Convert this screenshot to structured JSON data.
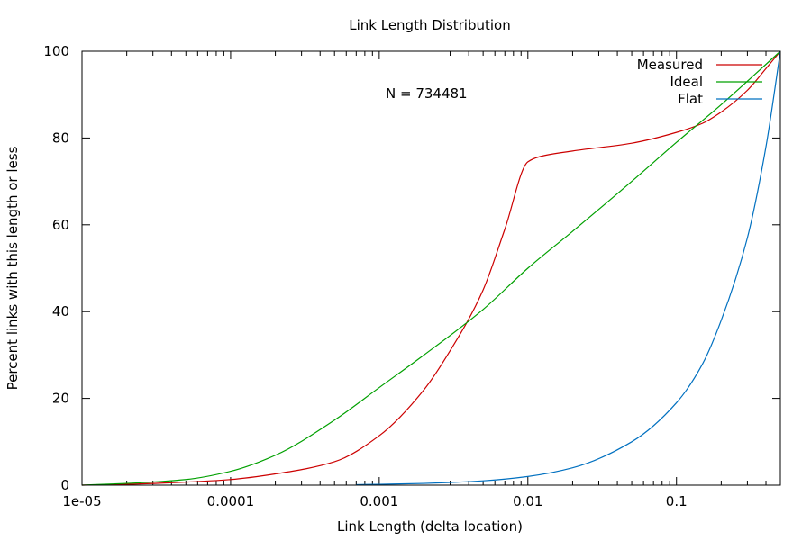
{
  "chart_data": {
    "type": "line",
    "title": "Link Length Distribution",
    "xlabel": "Link Length (delta location)",
    "ylabel": "Percent links with this length or less",
    "x_scale": "log",
    "xlim": [
      1e-05,
      0.5
    ],
    "ylim": [
      0,
      100
    ],
    "x_ticks": [
      1e-05,
      0.0001,
      0.001,
      0.01,
      0.1
    ],
    "x_tick_labels": [
      "1e-05",
      "0.0001",
      "0.001",
      "0.01",
      "0.1"
    ],
    "y_ticks": [
      0,
      20,
      40,
      60,
      80,
      100
    ],
    "y_tick_labels": [
      "0",
      "20",
      "40",
      "60",
      "80",
      "100"
    ],
    "grid": false,
    "legend_position": "top-right",
    "annotation": "N = 734481",
    "series": [
      {
        "name": "Measured",
        "color": "#cc0000",
        "x": [
          1e-05,
          2e-05,
          5e-05,
          0.0001,
          0.0002,
          0.0005,
          0.001,
          0.002,
          0.003,
          0.005,
          0.007,
          0.01,
          0.012,
          0.02,
          0.05,
          0.1,
          0.15,
          0.2,
          0.3,
          0.4,
          0.5
        ],
        "y": [
          0,
          0.2,
          0.7,
          1.3,
          2.6,
          5.4,
          11.4,
          22,
          31,
          45,
          59,
          74.5,
          75.7,
          77,
          78.8,
          81.3,
          83.4,
          86,
          91,
          96,
          100
        ]
      },
      {
        "name": "Ideal",
        "color": "#00a000",
        "x": [
          1e-05,
          2e-05,
          5e-05,
          0.0001,
          0.0002,
          0.0005,
          0.001,
          0.002,
          0.005,
          0.01,
          0.02,
          0.05,
          0.1,
          0.2,
          0.5
        ],
        "y": [
          0,
          0.4,
          1.3,
          3.2,
          6.9,
          15,
          22.5,
          30,
          40.5,
          50,
          58.5,
          70,
          79,
          87.7,
          100
        ]
      },
      {
        "name": "Flat",
        "color": "#0070c0",
        "x": [
          0.0007,
          0.001,
          0.002,
          0.005,
          0.01,
          0.02,
          0.05,
          0.1,
          0.15,
          0.2,
          0.3,
          0.4,
          0.5
        ],
        "y": [
          0.1,
          0.2,
          0.4,
          1,
          2,
          4,
          10,
          19,
          28,
          38,
          57,
          78,
          100
        ]
      }
    ]
  }
}
